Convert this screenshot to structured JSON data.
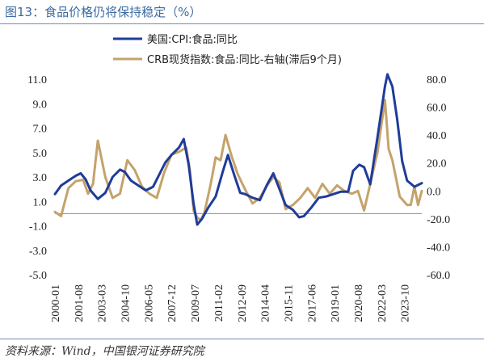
{
  "figure_title": "图13：食品价格仍将保持稳定（%）",
  "source_note": "资料来源：Wind，中国银河证券研究院",
  "colors": {
    "cpi_series": "#1f3c9a",
    "crb_series": "#c4a36b",
    "zero_line": "#888888",
    "title": "#3b6aa0"
  },
  "chart_data": {
    "type": "line",
    "title": "",
    "xlabel": "",
    "ylabel": "",
    "y_left_lim": [
      -5.0,
      11.0
    ],
    "y_left_ticks": [
      "11.0",
      "9.0",
      "7.0",
      "5.0",
      "3.0",
      "1.0",
      "-1.0",
      "-3.0",
      "-5.0"
    ],
    "y_right_lim": [
      -60.0,
      80.0
    ],
    "y_right_ticks": [
      "80.0",
      "60.0",
      "40.0",
      "20.0",
      "0.0",
      "-20.0",
      "-40.0",
      "-60.0"
    ],
    "x_ticks": [
      "2000-01",
      "2001-08",
      "2003-03",
      "2004-10",
      "2006-05",
      "2007-12",
      "2009-07",
      "2011-02",
      "2012-09",
      "2014-04",
      "2015-11",
      "2017-06",
      "2019-01",
      "2020-08",
      "2022-03",
      "2023-10"
    ],
    "x_range": [
      "2000-01",
      "2024-12"
    ],
    "grid": false,
    "legend": "top-center",
    "series": [
      {
        "name": "美国:CPI:食品:同比",
        "axis": "left",
        "points": [
          [
            "2000-01",
            1.6
          ],
          [
            "2000-06",
            2.3
          ],
          [
            "2000-12",
            2.7
          ],
          [
            "2001-06",
            3.1
          ],
          [
            "2001-10",
            3.3
          ],
          [
            "2002-02",
            2.8
          ],
          [
            "2002-06",
            1.9
          ],
          [
            "2002-12",
            1.2
          ],
          [
            "2003-06",
            1.7
          ],
          [
            "2003-12",
            3.0
          ],
          [
            "2004-06",
            3.6
          ],
          [
            "2004-10",
            3.4
          ],
          [
            "2005-03",
            2.7
          ],
          [
            "2005-09",
            2.3
          ],
          [
            "2006-03",
            1.9
          ],
          [
            "2006-09",
            2.2
          ],
          [
            "2007-02",
            3.2
          ],
          [
            "2007-07",
            4.2
          ],
          [
            "2007-12",
            4.8
          ],
          [
            "2008-06",
            5.4
          ],
          [
            "2008-10",
            6.1
          ],
          [
            "2009-02",
            4.0
          ],
          [
            "2009-06",
            0.8
          ],
          [
            "2009-09",
            -0.9
          ],
          [
            "2010-01",
            -0.4
          ],
          [
            "2010-06",
            0.5
          ],
          [
            "2010-12",
            1.4
          ],
          [
            "2011-06",
            3.5
          ],
          [
            "2011-10",
            4.8
          ],
          [
            "2012-03",
            3.2
          ],
          [
            "2012-08",
            1.7
          ],
          [
            "2012-12",
            1.6
          ],
          [
            "2013-06",
            1.3
          ],
          [
            "2013-12",
            1.1
          ],
          [
            "2014-06",
            2.4
          ],
          [
            "2014-11",
            3.3
          ],
          [
            "2015-04",
            2.0
          ],
          [
            "2015-09",
            0.7
          ],
          [
            "2016-03",
            0.3
          ],
          [
            "2016-08",
            -0.3
          ],
          [
            "2016-12",
            -0.2
          ],
          [
            "2017-06",
            0.5
          ],
          [
            "2017-12",
            1.3
          ],
          [
            "2018-06",
            1.4
          ],
          [
            "2018-12",
            1.6
          ],
          [
            "2019-06",
            1.8
          ],
          [
            "2019-12",
            1.8
          ],
          [
            "2020-04",
            3.5
          ],
          [
            "2020-09",
            4.0
          ],
          [
            "2021-01",
            3.8
          ],
          [
            "2021-06",
            2.4
          ],
          [
            "2021-12",
            6.3
          ],
          [
            "2022-06",
            10.4
          ],
          [
            "2022-08",
            11.4
          ],
          [
            "2022-12",
            10.4
          ],
          [
            "2023-04",
            7.7
          ],
          [
            "2023-08",
            4.3
          ],
          [
            "2023-12",
            2.7
          ],
          [
            "2024-06",
            2.2
          ],
          [
            "2024-12",
            2.5
          ]
        ]
      },
      {
        "name": "CRB现货指数:食品:同比-右轴(滞后9个月)",
        "axis": "right",
        "points": [
          [
            "2000-01",
            -15
          ],
          [
            "2000-06",
            -18
          ],
          [
            "2000-12",
            2
          ],
          [
            "2001-06",
            7
          ],
          [
            "2001-12",
            8
          ],
          [
            "2002-04",
            -2
          ],
          [
            "2002-08",
            5
          ],
          [
            "2002-12",
            36
          ],
          [
            "2003-06",
            10
          ],
          [
            "2003-12",
            -5
          ],
          [
            "2004-06",
            -2
          ],
          [
            "2004-12",
            22
          ],
          [
            "2005-06",
            15
          ],
          [
            "2005-12",
            3
          ],
          [
            "2006-06",
            -2
          ],
          [
            "2006-12",
            -5
          ],
          [
            "2007-06",
            13
          ],
          [
            "2007-12",
            26
          ],
          [
            "2008-06",
            28
          ],
          [
            "2008-12",
            31
          ],
          [
            "2009-03",
            15
          ],
          [
            "2009-06",
            -14
          ],
          [
            "2009-09",
            -19
          ],
          [
            "2009-12",
            -21
          ],
          [
            "2010-03",
            -15
          ],
          [
            "2010-08",
            5
          ],
          [
            "2010-12",
            24
          ],
          [
            "2011-04",
            22
          ],
          [
            "2011-08",
            40
          ],
          [
            "2012-01",
            25
          ],
          [
            "2012-06",
            12
          ],
          [
            "2012-12",
            1
          ],
          [
            "2013-06",
            -9
          ],
          [
            "2013-12",
            -5
          ],
          [
            "2014-06",
            4
          ],
          [
            "2014-11",
            10
          ],
          [
            "2015-04",
            6
          ],
          [
            "2015-09",
            -13
          ],
          [
            "2016-03",
            -10
          ],
          [
            "2016-09",
            -5
          ],
          [
            "2017-03",
            2
          ],
          [
            "2017-09",
            -5
          ],
          [
            "2018-03",
            5
          ],
          [
            "2018-09",
            -2
          ],
          [
            "2019-03",
            4
          ],
          [
            "2019-09",
            0
          ],
          [
            "2020-03",
            -2
          ],
          [
            "2020-08",
            0
          ],
          [
            "2021-01",
            -14
          ],
          [
            "2021-06",
            5
          ],
          [
            "2021-12",
            28
          ],
          [
            "2022-03",
            47
          ],
          [
            "2022-06",
            65
          ],
          [
            "2022-09",
            30
          ],
          [
            "2022-12",
            22
          ],
          [
            "2023-06",
            -4
          ],
          [
            "2023-12",
            -10
          ],
          [
            "2024-03",
            -10
          ],
          [
            "2024-06",
            3
          ],
          [
            "2024-09",
            -10
          ],
          [
            "2024-12",
            0
          ]
        ]
      }
    ]
  }
}
